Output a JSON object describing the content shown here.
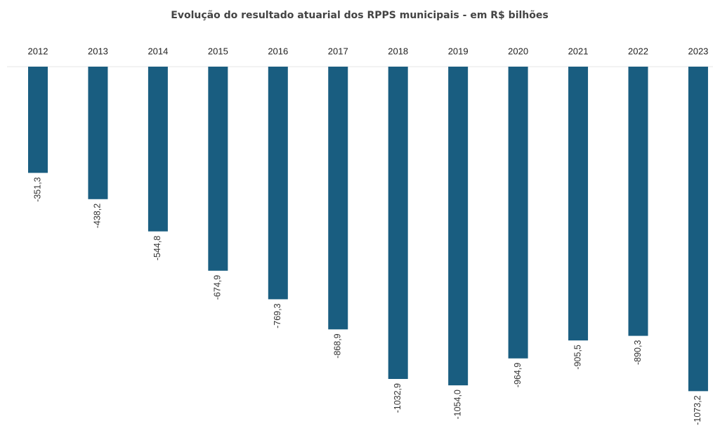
{
  "chart_data": {
    "type": "bar",
    "title": "Evolução do resultado atuarial dos RPPS municipais - em R$ bilhões",
    "categories": [
      "2012",
      "2013",
      "2014",
      "2015",
      "2016",
      "2017",
      "2018",
      "2019",
      "2020",
      "2021",
      "2022",
      "2023"
    ],
    "values": [
      -351.3,
      -438.2,
      -544.8,
      -674.9,
      -769.3,
      -868.9,
      -1032.9,
      -1054.0,
      -964.9,
      -905.5,
      -890.3,
      -1073.2
    ],
    "value_labels": [
      "-351,3",
      "-438,2",
      "-544,8",
      "-674,9",
      "-769,3",
      "-868,9",
      "-1032,9",
      "-1054,0",
      "-964,9",
      "-905,5",
      "-890,3",
      "-1073,2"
    ],
    "color": "#195d80",
    "ylim": [
      -1200,
      0
    ]
  }
}
